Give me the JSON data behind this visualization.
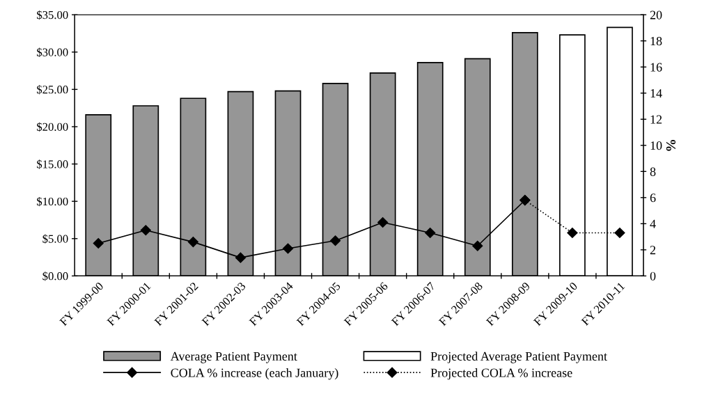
{
  "chart_data": {
    "type": "bar",
    "y2label": "%",
    "categories": [
      "FY 1999-00",
      "FY 2000-01",
      "FY 2001-02",
      "FY 2002-03",
      "FY 2003-04",
      "FY 2004-05",
      "FY 2005-06",
      "FY 2006-07",
      "FY 2007-08",
      "FY 2008-09",
      "FY 2009-10",
      "FY 2010-11"
    ],
    "series": [
      {
        "name": "Average Patient Payment",
        "color": "#969696",
        "values": [
          21.6,
          22.8,
          23.8,
          24.7,
          24.8,
          25.8,
          27.2,
          28.6,
          29.1,
          32.6,
          null,
          null
        ]
      },
      {
        "name": "Projected Average Patient Payment",
        "color": "#ffffff",
        "values": [
          null,
          null,
          null,
          null,
          null,
          null,
          null,
          null,
          null,
          null,
          32.3,
          33.3
        ]
      },
      {
        "name": "COLA % increase (each January)",
        "type": "line",
        "axis": "y2",
        "color": "#000000",
        "marker": "diamond",
        "line_style": "solid",
        "values": [
          2.5,
          3.5,
          2.6,
          1.4,
          2.1,
          2.7,
          4.1,
          3.3,
          2.3,
          5.8,
          null,
          null
        ]
      },
      {
        "name": "Projected COLA % increase",
        "type": "line",
        "axis": "y2",
        "color": "#000000",
        "marker": "diamond",
        "line_style": "dotted",
        "values": [
          null,
          null,
          null,
          null,
          null,
          null,
          null,
          null,
          null,
          5.8,
          3.3,
          3.3
        ]
      }
    ],
    "ylim": [
      0,
      35
    ],
    "yticks": [
      {
        "value": 0,
        "label": "$0.00"
      },
      {
        "value": 5,
        "label": "$5.00"
      },
      {
        "value": 10,
        "label": "$10.00"
      },
      {
        "value": 15,
        "label": "$15.00"
      },
      {
        "value": 20,
        "label": "$20.00"
      },
      {
        "value": 25,
        "label": "$25.00"
      },
      {
        "value": 30,
        "label": "$30.00"
      },
      {
        "value": 35,
        "label": "$35.00"
      }
    ],
    "y2lim": [
      0,
      20
    ],
    "y2ticks": [
      0,
      2,
      4,
      6,
      8,
      10,
      12,
      14,
      16,
      18,
      20
    ],
    "grid": false,
    "legend": "bottom"
  }
}
